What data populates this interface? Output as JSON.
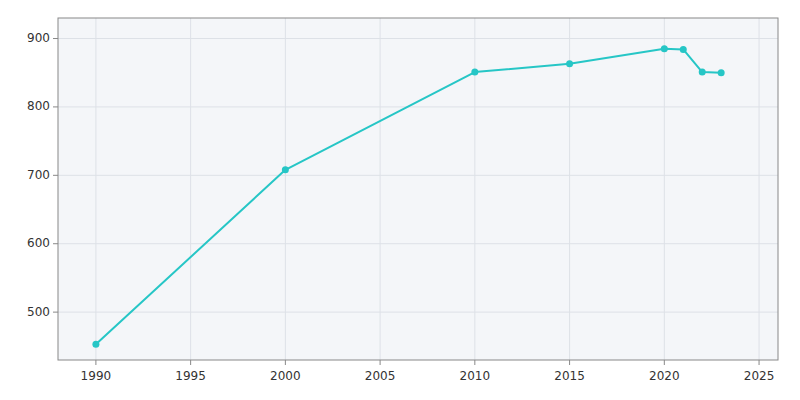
{
  "chart_data": {
    "type": "line",
    "x": [
      1990,
      2000,
      2010,
      2015,
      2020,
      2021,
      2022,
      2023
    ],
    "values": [
      453,
      708,
      851,
      863,
      885,
      884,
      851,
      850
    ],
    "color": "#26c6c6",
    "marker": "circle",
    "xlim": [
      1988,
      2026
    ],
    "xticks": [
      1990,
      1995,
      2000,
      2005,
      2010,
      2015,
      2020,
      2025
    ],
    "ylim": [
      430,
      930
    ],
    "yticks": [
      500,
      600,
      700,
      800,
      900
    ],
    "grid": true
  }
}
